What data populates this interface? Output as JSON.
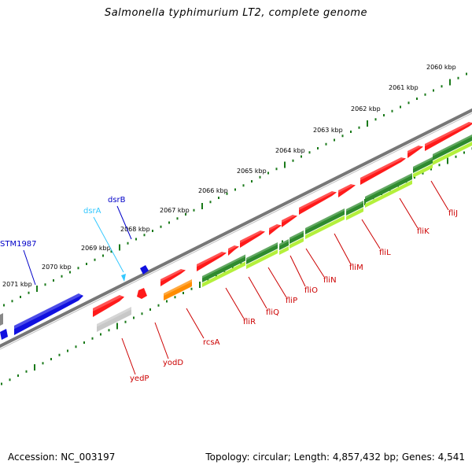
{
  "title": "Salmonella typhimurium LT2, complete genome",
  "footer": {
    "accession": "Accession: NC_003197",
    "stats": "Topology: circular; Length: 4,857,432 bp; Genes: 4,541"
  },
  "colors": {
    "backbone": "#7f7f7f",
    "tick": "#1a7a1a",
    "plus_gene": "#ff1a1a",
    "minus_gene": "#ff1a1a",
    "flagellar": "#2e8b2e",
    "flagellar_light": "#b4f03c",
    "grey_gene": "#c8c8c8",
    "orange_gene": "#ff8c00",
    "blue_gene": "#1010e0",
    "cyan_label": "#33c8ff",
    "red_label": "#cc0000",
    "blue_label": "#0000c8"
  },
  "scale_labels": [
    "2060 kbp",
    "2061 kbp",
    "2062 kbp",
    "2063 kbp",
    "2064 kbp",
    "2065 kbp",
    "2066 kbp",
    "2067 kbp",
    "2068 kbp",
    "2069 kbp",
    "2070 kbp",
    "2071 kbp"
  ],
  "gene_labels": {
    "top": [
      {
        "text": "STM1987",
        "color": "blue"
      },
      {
        "text": "dsrA",
        "color": "cyan"
      },
      {
        "text": "dsrB",
        "color": "blue"
      }
    ],
    "bottom": [
      {
        "text": "yedP"
      },
      {
        "text": "yodD"
      },
      {
        "text": "rcsA"
      },
      {
        "text": "fliR"
      },
      {
        "text": "fliQ"
      },
      {
        "text": "fliP"
      },
      {
        "text": "fliO"
      },
      {
        "text": "fliN"
      },
      {
        "text": "fliM"
      },
      {
        "text": "fliL"
      },
      {
        "text": "fliK"
      },
      {
        "text": "fliJ"
      }
    ]
  }
}
